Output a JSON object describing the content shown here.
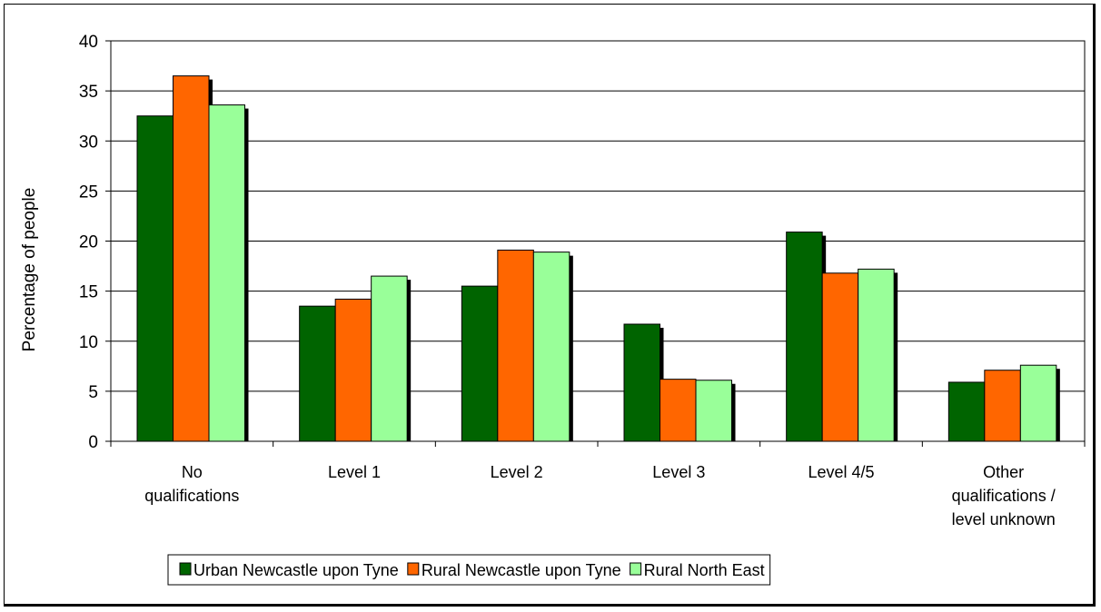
{
  "chart_data": {
    "type": "bar",
    "title": "",
    "xlabel": "",
    "ylabel": "Percentage of people",
    "ylim": [
      0,
      40
    ],
    "yticks": [
      0,
      5,
      10,
      15,
      20,
      25,
      30,
      35,
      40
    ],
    "grid": true,
    "legend_position": "bottom",
    "categories": [
      [
        "No",
        "qualifications"
      ],
      [
        "Level 1"
      ],
      [
        "Level 2"
      ],
      [
        "Level 3"
      ],
      [
        "Level 4/5"
      ],
      [
        "Other",
        "qualifications /",
        "level unknown"
      ]
    ],
    "series": [
      {
        "name": "Urban Newcastle upon Tyne",
        "color": "#006400",
        "values": [
          32.5,
          13.5,
          15.5,
          11.7,
          20.9,
          5.9
        ]
      },
      {
        "name": "Rural Newcastle upon Tyne",
        "color": "#FF6600",
        "values": [
          36.5,
          14.2,
          19.1,
          6.2,
          16.8,
          7.1
        ]
      },
      {
        "name": "Rural North East",
        "color": "#99FF99",
        "values": [
          33.6,
          16.5,
          18.9,
          6.1,
          17.2,
          7.6
        ]
      }
    ]
  }
}
